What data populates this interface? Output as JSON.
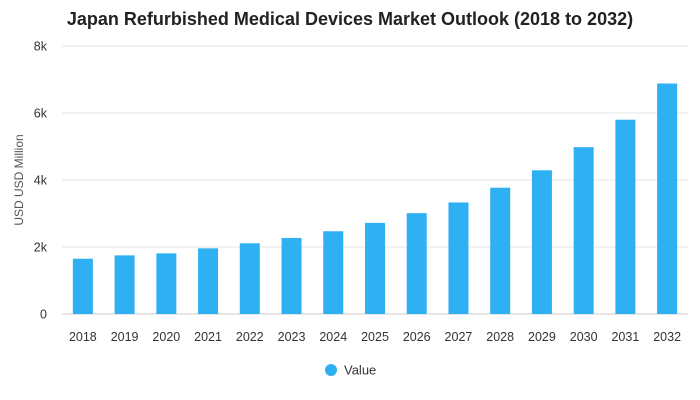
{
  "chart_data": {
    "type": "bar",
    "title": "Japan Refurbished Medical Devices Market Outlook (2018 to 2032)",
    "xlabel": "",
    "ylabel": "USD USD Million",
    "categories": [
      "2018",
      "2019",
      "2020",
      "2021",
      "2022",
      "2023",
      "2024",
      "2025",
      "2026",
      "2027",
      "2028",
      "2029",
      "2030",
      "2031",
      "2032"
    ],
    "series": [
      {
        "name": "Value",
        "color": "#2fb0f3",
        "values": [
          1650,
          1750,
          1810,
          1960,
          2110,
          2270,
          2470,
          2720,
          3010,
          3330,
          3770,
          4290,
          4980,
          5800,
          6880
        ]
      }
    ],
    "ylim": [
      0,
      8000
    ],
    "yticks": [
      0,
      2000,
      4000,
      6000,
      8000
    ],
    "ytick_labels": [
      "0",
      "2k",
      "4k",
      "6k",
      "8k"
    ],
    "grid": true,
    "legend": "bottom-center"
  }
}
